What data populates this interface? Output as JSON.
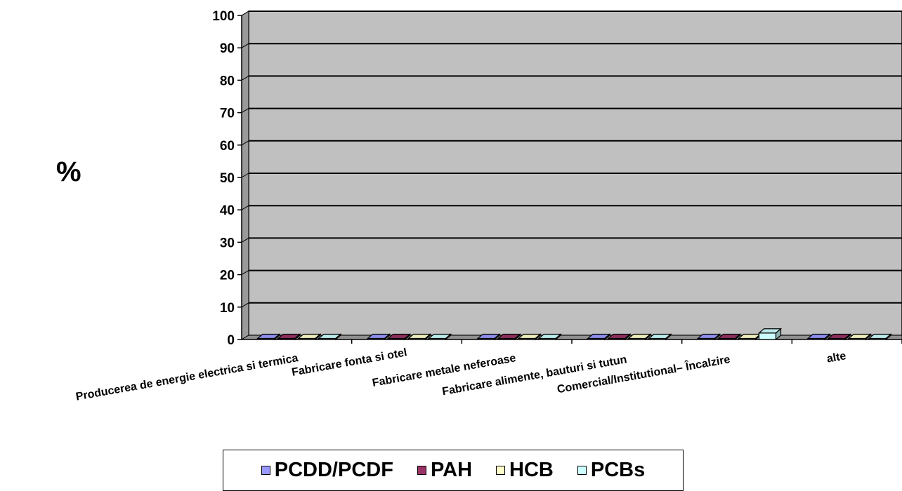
{
  "chart_data": {
    "type": "bar",
    "ylabel": "%",
    "ylim": [
      0,
      100
    ],
    "yticks": [
      0,
      10,
      20,
      30,
      40,
      50,
      60,
      70,
      80,
      90,
      100
    ],
    "grid": true,
    "legend_position": "bottom",
    "categories": [
      "Producerea de energie electrica si termica",
      "Fabricare fonta si otel",
      "Fabricare metale neferoase",
      "Fabricare alimente, bauturi si tutun",
      "Comercial/Institutional– Încalzire",
      "alte"
    ],
    "series": [
      {
        "name": "PCDD/PCDF",
        "color": "#9999FF",
        "values": [
          0,
          0,
          0,
          0,
          0,
          0
        ]
      },
      {
        "name": "PAH",
        "color": "#993366",
        "values": [
          0,
          0,
          0,
          0,
          0,
          0
        ]
      },
      {
        "name": "HCB",
        "color": "#FFFFCC",
        "values": [
          0,
          0,
          0,
          0,
          0,
          0
        ]
      },
      {
        "name": "PCBs",
        "color": "#CCFFFF",
        "values": [
          0,
          0,
          0,
          0,
          2,
          0
        ]
      }
    ]
  }
}
